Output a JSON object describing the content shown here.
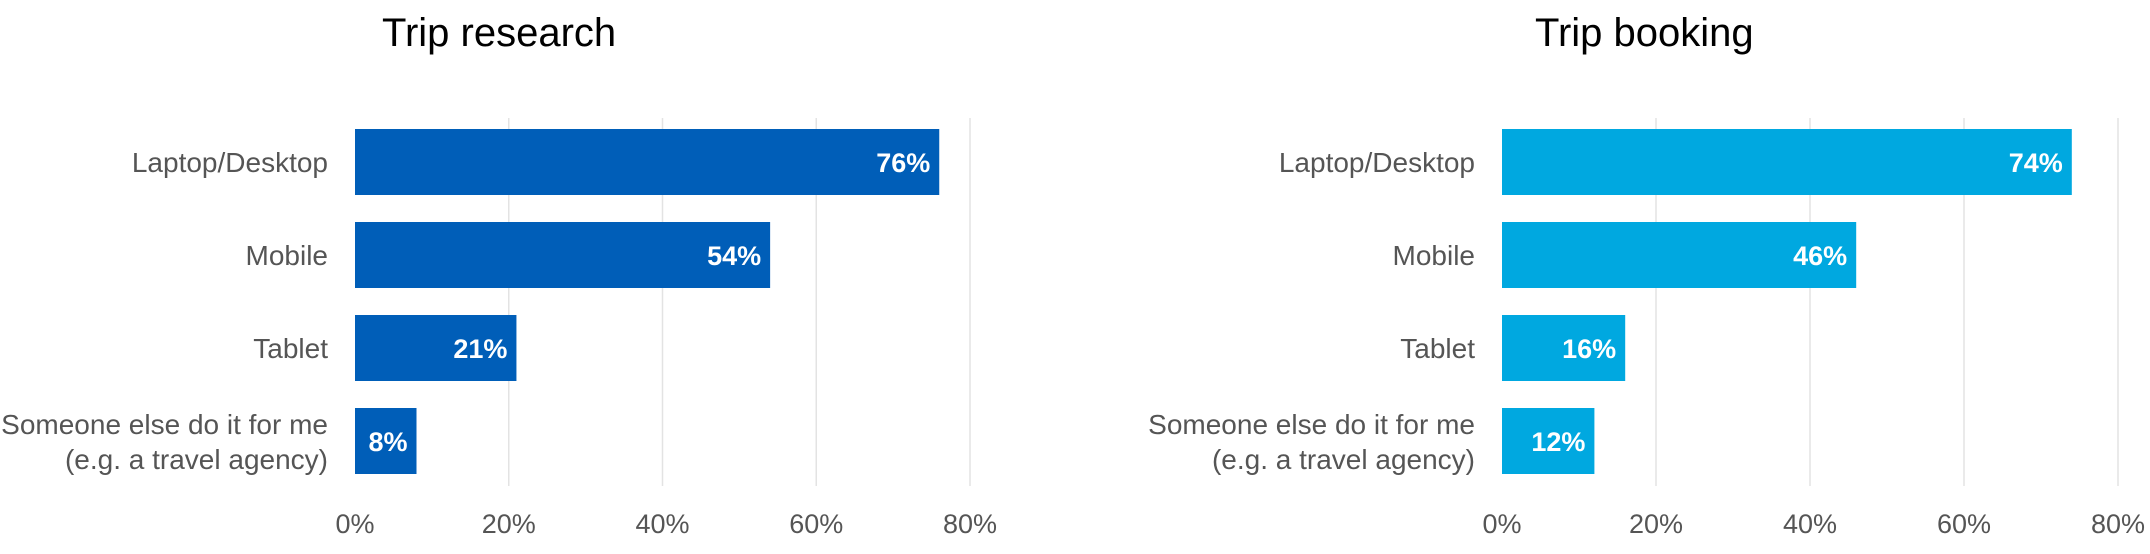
{
  "chart_data": [
    {
      "type": "bar",
      "orientation": "horizontal",
      "title": "Trip research",
      "categories": [
        [
          "Laptop/Desktop"
        ],
        [
          "Mobile"
        ],
        [
          "Tablet"
        ],
        [
          "Someone else do it for me",
          "(e.g. a travel agency)"
        ]
      ],
      "values": [
        76,
        54,
        21,
        8
      ],
      "value_labels": [
        "76%",
        "54%",
        "21%",
        "8%"
      ],
      "xlim": [
        0,
        80
      ],
      "xticks": [
        0,
        20,
        40,
        60,
        80
      ],
      "xtick_labels": [
        "0%",
        "20%",
        "40%",
        "60%",
        "80%"
      ],
      "grid": true,
      "color": "#005eb8"
    },
    {
      "type": "bar",
      "orientation": "horizontal",
      "title": "Trip booking",
      "categories": [
        [
          "Laptop/Desktop"
        ],
        [
          "Mobile"
        ],
        [
          "Tablet"
        ],
        [
          "Someone else do it for me",
          "(e.g. a travel agency)"
        ]
      ],
      "values": [
        74,
        46,
        16,
        12
      ],
      "value_labels": [
        "74%",
        "46%",
        "16%",
        "12%"
      ],
      "xlim": [
        0,
        80
      ],
      "xticks": [
        0,
        20,
        40,
        60,
        80
      ],
      "xtick_labels": [
        "0%",
        "20%",
        "40%",
        "60%",
        "80%"
      ],
      "grid": true,
      "color": "#00a8e0"
    }
  ]
}
